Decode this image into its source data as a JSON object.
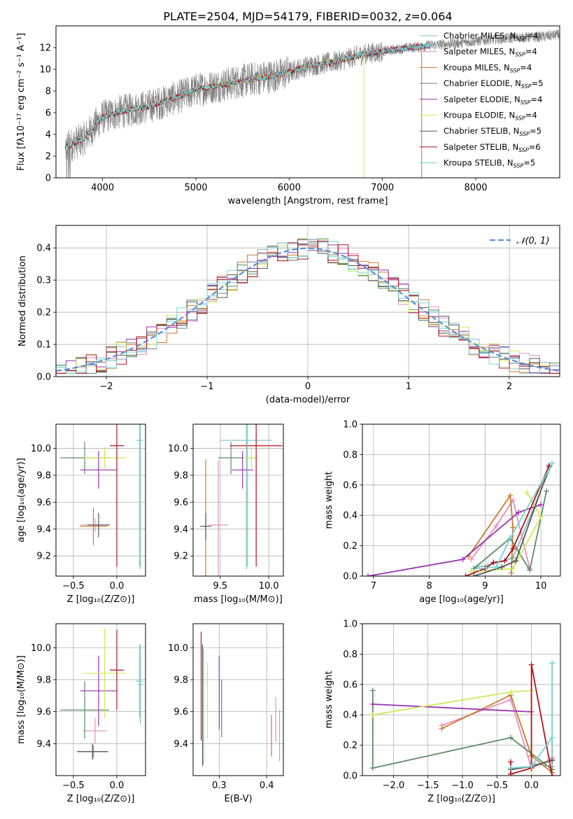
{
  "figure": {
    "title": "PLATE=2504, MJD=54179, FIBERID=0032, z=0.064"
  },
  "palette": {
    "Chabrier MILES": "#7fbfbf",
    "Salpeter MILES": "#e58fc2",
    "Kroupa MILES": "#cc7a2e",
    "Chabrier ELODIE": "#5e8a66",
    "Salpeter ELODIE": "#9a33b0",
    "Kroupa ELODIE": "#cfe85a",
    "Chabrier STELIB": "#555555",
    "Salpeter STELIB": "#b5121b",
    "Kroupa STELIB": "#78d4d4",
    "gauss": "#5b8fd8",
    "data": "#808080"
  },
  "chart_data": [
    {
      "id": "spectrum",
      "type": "line",
      "xlabel": "wavelength [Angstrom, rest frame]",
      "ylabel": "Flux [fλ10⁻¹⁷ erg cm⁻² s⁻¹ A⁻¹]",
      "xlim": [
        3500,
        8900
      ],
      "ylim": [
        0,
        14
      ],
      "xticks": [
        4000,
        5000,
        6000,
        7000,
        8000
      ],
      "yticks": [
        0,
        2,
        4,
        6,
        8,
        10,
        12
      ],
      "legend": [
        "Chabrier MILES, N_SSP=4",
        "Salpeter MILES, N_SSP=4",
        "Kroupa MILES, N_SSP=4",
        "Chabrier ELODIE, N_SSP=5",
        "Salpeter ELODIE, N_SSP=4",
        "Kroupa ELODIE, N_SSP=4",
        "Chabrier STELIB, N_SSP=5",
        "Salpeter STELIB, N_SSP=6",
        "Kroupa STELIB, N_SSP=5"
      ],
      "continuum": [
        [
          3600,
          2.8
        ],
        [
          3800,
          3.6
        ],
        [
          3900,
          4.6
        ],
        [
          4000,
          5.6
        ],
        [
          4200,
          6.1
        ],
        [
          4500,
          6.6
        ],
        [
          4800,
          7.4
        ],
        [
          5000,
          8.1
        ],
        [
          5300,
          8.6
        ],
        [
          5600,
          9.1
        ],
        [
          5900,
          9.5
        ],
        [
          6200,
          10.3
        ],
        [
          6500,
          10.7
        ],
        [
          6800,
          11.4
        ],
        [
          7200,
          11.9
        ],
        [
          7500,
          12.2
        ],
        [
          7800,
          12.4
        ],
        [
          8100,
          12.7
        ],
        [
          8400,
          12.9
        ],
        [
          8700,
          13.0
        ],
        [
          8900,
          13.2
        ]
      ],
      "grid": false,
      "legend_position": "right"
    },
    {
      "id": "residuals",
      "type": "histogram",
      "xlabel": "(data-model)/error",
      "ylabel": "Normed distribution",
      "xlim": [
        -2.5,
        2.5
      ],
      "ylim": [
        0,
        0.47
      ],
      "xticks": [
        -2,
        -1,
        0,
        1,
        2
      ],
      "yticks": [
        0.0,
        0.1,
        0.2,
        0.3,
        0.4
      ],
      "bin_width": 0.1,
      "gauss_label": "𝒩(0, 1)",
      "grid": true,
      "legend_position": "top-right"
    },
    {
      "id": "age_vs_Z",
      "type": "scatter",
      "xlabel": "Z [log₁₀(Z/Z⊙)]",
      "ylabel": "age  [log₁₀(age/yr)]",
      "xlim": [
        -0.7,
        0.33
      ],
      "ylim": [
        9.05,
        10.18
      ],
      "xticks": [
        -0.5,
        0.0
      ],
      "yticks": [
        9.2,
        9.4,
        9.6,
        9.8,
        10.0
      ],
      "points": [
        {
          "s": "Chabrier MILES",
          "x": 0.27,
          "y": 10.06,
          "xe": 0.03,
          "ye": 0.96
        },
        {
          "s": "Salpeter MILES",
          "x": -0.25,
          "y": 9.43,
          "xe": 0.17,
          "ye": 0.05
        },
        {
          "s": "Kroupa MILES",
          "x": -0.27,
          "y": 9.42,
          "xe": 0.16,
          "ye": 0.14
        },
        {
          "s": "Chabrier ELODIE",
          "x": -0.37,
          "y": 9.93,
          "xe": 0.28,
          "ye": 0.12
        },
        {
          "s": "Salpeter ELODIE",
          "x": -0.21,
          "y": 9.84,
          "xe": 0.21,
          "ye": 0.14
        },
        {
          "s": "Kroupa ELODIE",
          "x": -0.14,
          "y": 9.93,
          "xe": 0.24,
          "ye": 0.08
        },
        {
          "s": "Chabrier STELIB",
          "x": -0.21,
          "y": 9.43,
          "xe": 0.13,
          "ye": 0.09
        },
        {
          "s": "Salpeter STELIB",
          "x": 0.0,
          "y": 10.02,
          "xe": 0.08,
          "ye": 0.9
        },
        {
          "s": "Kroupa STELIB",
          "x": 0.26,
          "y": 10.06,
          "xe": 0.04,
          "ye": 0.94
        }
      ]
    },
    {
      "id": "age_vs_mass",
      "type": "scatter",
      "xlabel": "mass [log₁₀(M/M⊙)]",
      "ylabel": "",
      "xlim": [
        9.22,
        10.15
      ],
      "ylim": [
        9.05,
        10.18
      ],
      "xticks": [
        9.5,
        10.0
      ],
      "yticks": [
        9.2,
        9.4,
        9.6,
        9.8,
        10.0
      ],
      "points": [
        {
          "s": "Chabrier MILES",
          "x": 9.77,
          "y": 10.06,
          "xe": 0.27,
          "ye": 0.96
        },
        {
          "s": "Salpeter MILES",
          "x": 9.48,
          "y": 9.43,
          "xe": 0.1,
          "ye": 0.48
        },
        {
          "s": "Kroupa MILES",
          "x": 9.35,
          "y": 9.42,
          "xe": 0.03,
          "ye": 0.5
        },
        {
          "s": "Chabrier ELODIE",
          "x": 9.61,
          "y": 9.93,
          "xe": 0.13,
          "ye": 0.12
        },
        {
          "s": "Salpeter ELODIE",
          "x": 9.73,
          "y": 9.84,
          "xe": 0.11,
          "ye": 0.14
        },
        {
          "s": "Kroupa ELODIE",
          "x": 9.82,
          "y": 9.93,
          "xe": 0.07,
          "ye": 0.08
        },
        {
          "s": "Chabrier STELIB",
          "x": 9.35,
          "y": 9.42,
          "xe": 0.06,
          "ye": 0.1
        },
        {
          "s": "Salpeter STELIB",
          "x": 9.87,
          "y": 10.02,
          "xe": 0.27,
          "ye": 0.9
        },
        {
          "s": "Kroupa STELIB",
          "x": 9.78,
          "y": 10.06,
          "xe": 0.03,
          "ye": 0.94
        }
      ]
    },
    {
      "id": "mass_vs_Z",
      "type": "scatter",
      "xlabel": "Z [log₁₀(Z/Z⊙)]",
      "ylabel": "mass [log₁₀(M/M⊙)]",
      "xlim": [
        -0.7,
        0.33
      ],
      "ylim": [
        9.2,
        10.15
      ],
      "xticks": [
        -0.5,
        0.0
      ],
      "yticks": [
        9.4,
        9.6,
        9.8,
        10.0
      ],
      "points": [
        {
          "s": "Chabrier MILES",
          "x": 0.27,
          "y": 9.77,
          "xe": 0.03,
          "ye": 0.25
        },
        {
          "s": "Salpeter MILES",
          "x": -0.25,
          "y": 9.48,
          "xe": 0.14,
          "ye": 0.08
        },
        {
          "s": "Kroupa MILES",
          "x": -0.27,
          "y": 9.35,
          "xe": 0.17,
          "ye": 0.04
        },
        {
          "s": "Chabrier ELODIE",
          "x": -0.37,
          "y": 9.61,
          "xe": 0.28,
          "ye": 0.18
        },
        {
          "s": "Salpeter ELODIE",
          "x": -0.21,
          "y": 9.73,
          "xe": 0.21,
          "ye": 0.22
        },
        {
          "s": "Kroupa ELODIE",
          "x": -0.14,
          "y": 9.84,
          "xe": 0.24,
          "ye": 0.28
        },
        {
          "s": "Chabrier STELIB",
          "x": -0.28,
          "y": 9.35,
          "xe": 0.18,
          "ye": 0.05
        },
        {
          "s": "Salpeter STELIB",
          "x": 0.0,
          "y": 9.86,
          "xe": 0.08,
          "ye": 0.25
        },
        {
          "s": "Kroupa STELIB",
          "x": 0.26,
          "y": 9.79,
          "xe": 0.04,
          "ye": 0.23
        }
      ]
    },
    {
      "id": "mass_vs_ebv",
      "type": "scatter",
      "xlabel": "E(B-V)",
      "ylabel": "",
      "xlim": [
        0.245,
        0.435
      ],
      "ylim": [
        9.2,
        10.15
      ],
      "xticks": [
        0.3,
        0.4
      ],
      "yticks": [
        9.4,
        9.6,
        9.8,
        10.0
      ],
      "points": [
        {
          "s": "Chabrier MILES",
          "x": 0.427,
          "y": 9.45,
          "xe": 0,
          "ye": 0.16
        },
        {
          "s": "Salpeter MILES",
          "x": 0.419,
          "y": 9.55,
          "xe": 0,
          "ye": 0.14
        },
        {
          "s": "Kroupa MILES",
          "x": 0.41,
          "y": 9.45,
          "xe": 0,
          "ye": 0.13
        },
        {
          "s": "Chabrier ELODIE",
          "x": 0.305,
          "y": 9.62,
          "xe": 0,
          "ye": 0.18
        },
        {
          "s": "Salpeter ELODIE",
          "x": 0.3,
          "y": 9.72,
          "xe": 0,
          "ye": 0.23
        },
        {
          "s": "Kroupa ELODIE",
          "x": 0.275,
          "y": 9.67,
          "xe": 0,
          "ye": 0.24
        },
        {
          "s": "Chabrier STELIB",
          "x": 0.265,
          "y": 9.64,
          "xe": 0,
          "ye": 0.38
        },
        {
          "s": "Salpeter STELIB",
          "x": 0.262,
          "y": 9.76,
          "xe": 0,
          "ye": 0.34
        },
        {
          "s": "Kroupa STELIB",
          "x": 0.267,
          "y": 9.63,
          "xe": 0,
          "ye": 0.36
        }
      ]
    },
    {
      "id": "weight_vs_age",
      "type": "line",
      "xlabel": "age  [log₁₀(age/yr)]",
      "ylabel": "mass weight",
      "xlim": [
        6.8,
        10.35
      ],
      "ylim": [
        0,
        1.0
      ],
      "xticks": [
        7,
        8,
        9,
        10
      ],
      "yticks": [
        0.0,
        0.2,
        0.4,
        0.6,
        0.8,
        1.0
      ],
      "series": [
        {
          "s": "Chabrier MILES",
          "x": [
            8.85,
            9.05,
            9.5,
            10.2
          ],
          "y": [
            0.06,
            0.07,
            0.12,
            0.74
          ]
        },
        {
          "s": "Salpeter MILES",
          "x": [
            8.75,
            9.2,
            9.5,
            9.8
          ],
          "y": [
            0.11,
            0.33,
            0.5,
            0.05
          ]
        },
        {
          "s": "Kroupa MILES",
          "x": [
            8.7,
            9.45,
            9.5,
            9.47
          ],
          "y": [
            0.13,
            0.53,
            0.32,
            0.02
          ]
        },
        {
          "s": "Chabrier ELODIE",
          "x": [
            8.8,
            9.45,
            9.8,
            10.1
          ],
          "y": [
            0.05,
            0.25,
            0.04,
            0.56
          ]
        },
        {
          "s": "Salpeter ELODIE",
          "x": [
            6.9,
            8.6,
            9.6,
            10.0
          ],
          "y": [
            0.0,
            0.11,
            0.42,
            0.47
          ]
        },
        {
          "s": "Kroupa ELODIE",
          "x": [
            8.75,
            9.5,
            10.0,
            9.75
          ],
          "y": [
            0.03,
            0.05,
            0.39,
            0.55
          ]
        },
        {
          "s": "Chabrier STELIB",
          "x": [
            8.8,
            9.3,
            9.55,
            10.15
          ],
          "y": [
            0.0,
            0.06,
            0.1,
            0.72
          ]
        },
        {
          "s": "Salpeter STELIB",
          "x": [
            8.65,
            9.0,
            9.15,
            9.35,
            9.5,
            10.15
          ],
          "y": [
            0.0,
            0.05,
            0.09,
            0.1,
            0.18,
            0.73
          ]
        },
        {
          "s": "Kroupa STELIB",
          "x": [
            8.9,
            9.2,
            9.45,
            10.2
          ],
          "y": [
            0.05,
            0.06,
            0.25,
            0.74
          ]
        }
      ]
    },
    {
      "id": "weight_vs_Z",
      "type": "line",
      "xlabel": "Z [log₁₀(Z/Z⊙)]",
      "ylabel": "mass weight",
      "xlim": [
        -2.45,
        0.42
      ],
      "ylim": [
        0,
        1.0
      ],
      "xticks": [
        -2.0,
        -1.5,
        -1.0,
        -0.5,
        0.0
      ],
      "yticks": [
        0.0,
        0.2,
        0.4,
        0.6,
        0.8,
        1.0
      ],
      "series": [
        {
          "s": "Chabrier MILES",
          "x": [
            0.0,
            0.3,
            0.3,
            0.3
          ],
          "y": [
            0.08,
            0.06,
            0.12,
            0.74
          ]
        },
        {
          "s": "Salpeter MILES",
          "x": [
            -1.3,
            -0.3,
            0.0,
            0.3
          ],
          "y": [
            0.33,
            0.5,
            0.05,
            0.11
          ]
        },
        {
          "s": "Kroupa MILES",
          "x": [
            -1.3,
            -0.3,
            0.0,
            0.3
          ],
          "y": [
            0.31,
            0.53,
            0.13,
            0.02
          ]
        },
        {
          "s": "Chabrier ELODIE",
          "x": [
            -2.3,
            -2.3,
            -0.3,
            0.3
          ],
          "y": [
            0.56,
            0.05,
            0.25,
            0.04
          ]
        },
        {
          "s": "Salpeter ELODIE",
          "x": [
            -2.3,
            0.0
          ],
          "y": [
            0.47,
            0.42
          ]
        },
        {
          "s": "Kroupa ELODIE",
          "x": [
            -2.3,
            -0.3,
            0.0,
            0.0
          ],
          "y": [
            0.4,
            0.55,
            0.56,
            0.03
          ]
        },
        {
          "s": "Chabrier STELIB",
          "x": [
            -0.3,
            0.0,
            0.3
          ],
          "y": [
            0.04,
            0.06,
            0.1
          ]
        },
        {
          "s": "Salpeter STELIB",
          "x": [
            -0.3,
            -0.3,
            0.0,
            0.0,
            0.3
          ],
          "y": [
            0.09,
            0.01,
            0.05,
            0.73,
            0.0
          ]
        },
        {
          "s": "Kroupa STELIB",
          "x": [
            -0.3,
            0.0,
            0.3,
            0.3
          ],
          "y": [
            0.05,
            0.06,
            0.25,
            0.74
          ]
        }
      ]
    }
  ]
}
